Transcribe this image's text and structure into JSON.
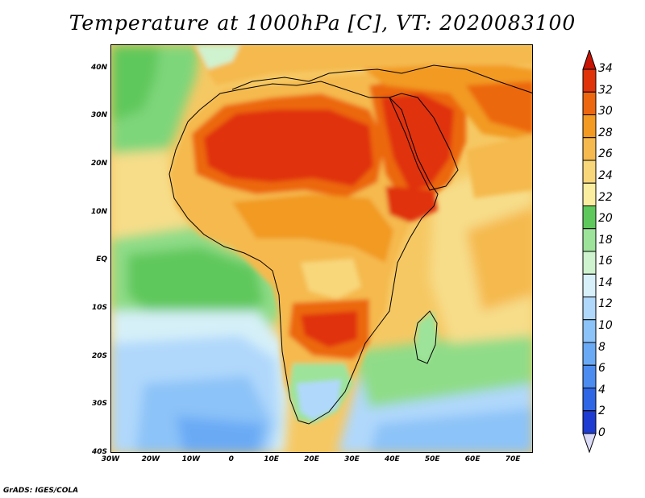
{
  "title": "Temperature at 1000hPa [C], VT: 2020083100",
  "credit": "GrADS: IGES/COLA",
  "map": {
    "lon_range": [
      -30,
      75
    ],
    "lat_range": [
      -40,
      45
    ],
    "lat_ticks": [
      {
        "value": 40,
        "label": "40N"
      },
      {
        "value": 30,
        "label": "30N"
      },
      {
        "value": 20,
        "label": "20N"
      },
      {
        "value": 10,
        "label": "10N"
      },
      {
        "value": 0,
        "label": "EQ"
      },
      {
        "value": -10,
        "label": "10S"
      },
      {
        "value": -20,
        "label": "20S"
      },
      {
        "value": -30,
        "label": "30S"
      },
      {
        "value": -40,
        "label": "40S"
      }
    ],
    "lon_ticks": [
      {
        "value": -30,
        "label": "30W"
      },
      {
        "value": -20,
        "label": "20W"
      },
      {
        "value": -10,
        "label": "10W"
      },
      {
        "value": 0,
        "label": "0"
      },
      {
        "value": 10,
        "label": "10E"
      },
      {
        "value": 20,
        "label": "20E"
      },
      {
        "value": 30,
        "label": "30E"
      },
      {
        "value": 40,
        "label": "40E"
      },
      {
        "value": 50,
        "label": "50E"
      },
      {
        "value": 60,
        "label": "60E"
      },
      {
        "value": 70,
        "label": "70E"
      }
    ]
  },
  "colorbar": {
    "levels": [
      "0",
      "2",
      "4",
      "6",
      "8",
      "10",
      "12",
      "14",
      "16",
      "18",
      "20",
      "22",
      "24",
      "26",
      "28",
      "30",
      "32",
      "34"
    ],
    "colors": [
      "#0a0a78",
      "#1e3cd2",
      "#2e66e6",
      "#4c8cf0",
      "#6aaaf5",
      "#8cc3f8",
      "#b0d8fb",
      "#d8f0fa",
      "#cff2cf",
      "#9de39a",
      "#5fc85c",
      "#fbeea0",
      "#f8d77a",
      "#f5b94e",
      "#f29a22",
      "#ec6710",
      "#e0330a",
      "#c81405"
    ]
  }
}
